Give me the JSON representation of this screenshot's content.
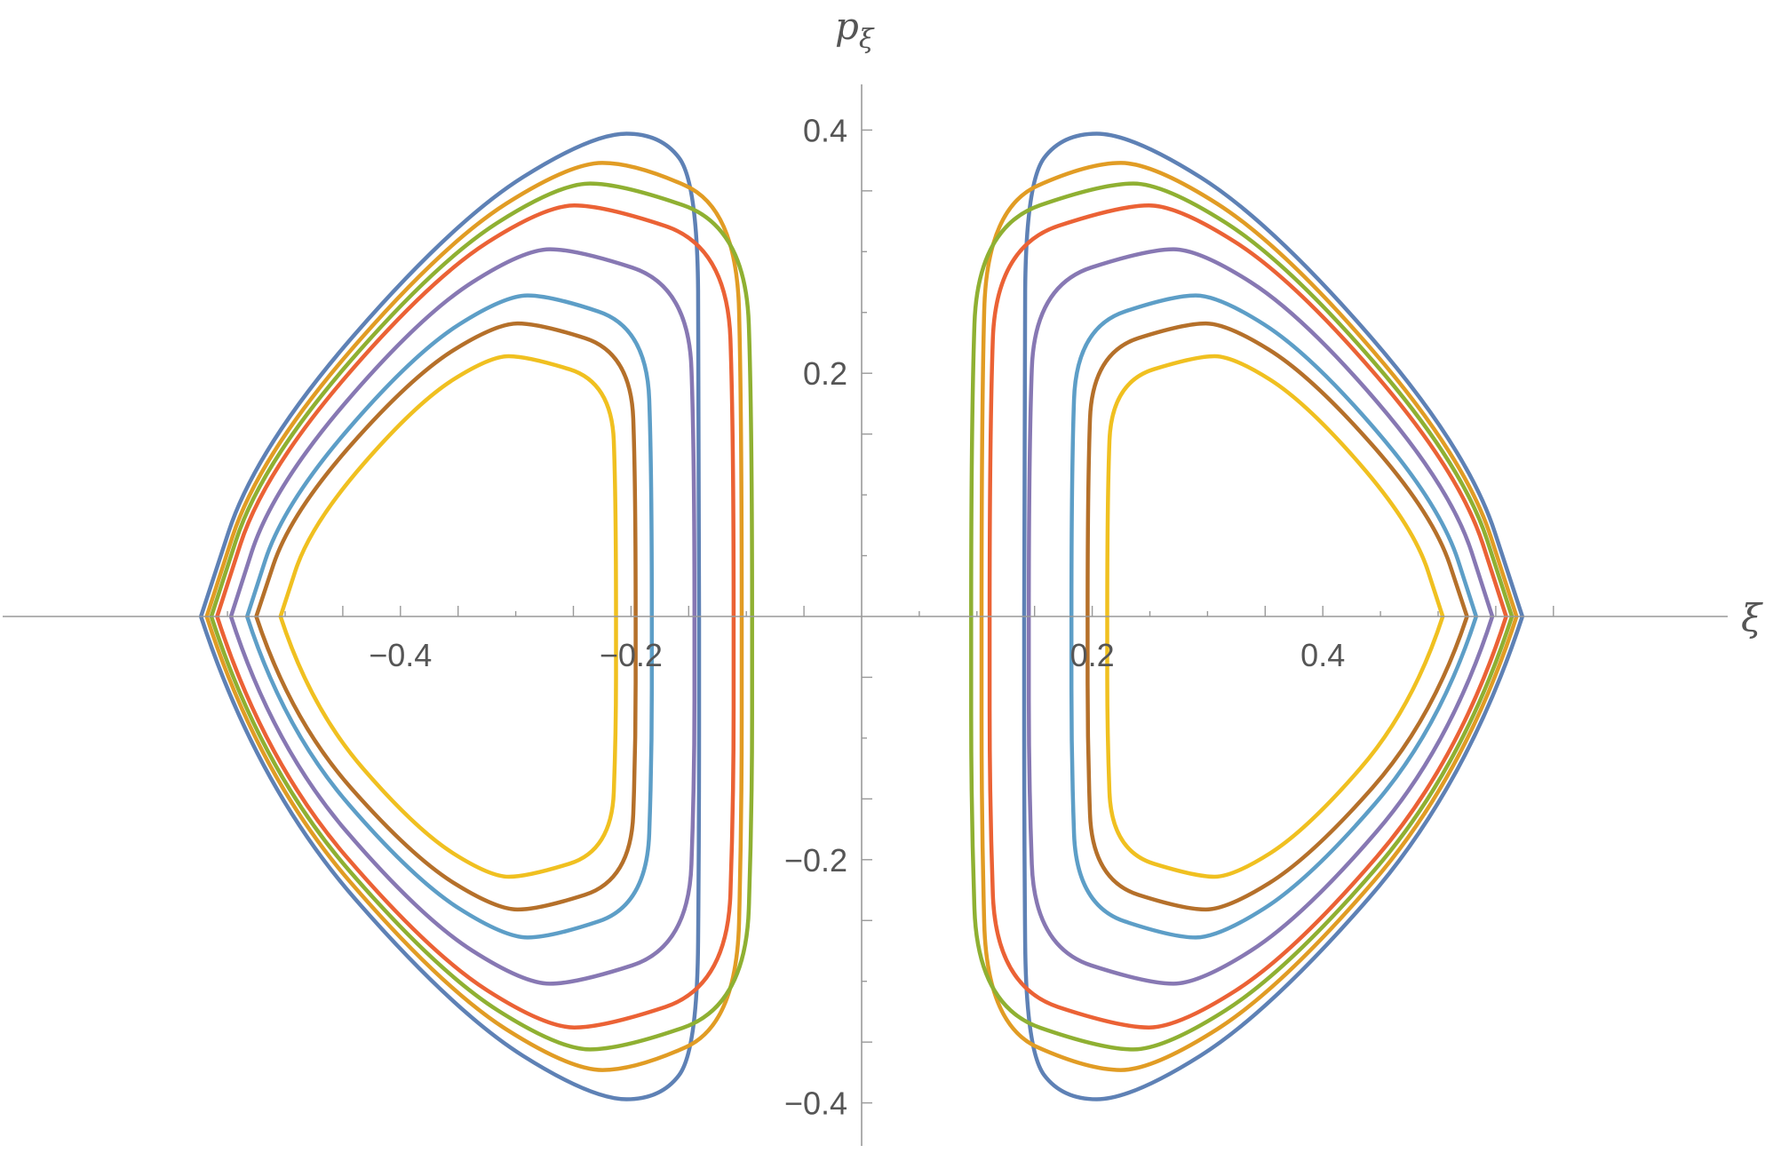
{
  "chart_data": {
    "type": "line",
    "title": "",
    "xlabel": "ξ",
    "ylabel": "p",
    "ylabel_subscript": "ξ",
    "xlim": [
      -0.595,
      0.635
    ],
    "ylim": [
      -0.435,
      0.435
    ],
    "xticks": [
      -0.4,
      -0.2,
      0.2,
      0.4
    ],
    "xtick_labels": [
      "−0.4",
      "−0.2",
      "0.2",
      "0.4"
    ],
    "yticks": [
      0.4,
      0.2,
      -0.2,
      -0.4
    ],
    "ytick_labels": [
      "0.4",
      "0.2",
      "−0.2",
      "−0.4"
    ],
    "grid": false,
    "legend": "none",
    "curve_shape": "closed level curves, triangular with rounded corners, mirror-symmetric in ξ and p",
    "series": [
      {
        "color": "#5E81B5",
        "inner_xi": 0.141,
        "outer_xi": 0.573,
        "peak_p": 0.397,
        "peak_xi": 0.174
      },
      {
        "color": "#E19C24",
        "inner_xi": 0.104,
        "outer_xi": 0.568,
        "peak_p": 0.373,
        "peak_xi": 0.197
      },
      {
        "color": "#8FB032",
        "inner_xi": 0.095,
        "outer_xi": 0.564,
        "peak_p": 0.356,
        "peak_xi": 0.209
      },
      {
        "color": "#EB6235",
        "inner_xi": 0.111,
        "outer_xi": 0.559,
        "peak_p": 0.338,
        "peak_xi": 0.224
      },
      {
        "color": "#8778B3",
        "inner_xi": 0.145,
        "outer_xi": 0.547,
        "peak_p": 0.302,
        "peak_xi": 0.248
      },
      {
        "color": "#5D9EC7",
        "inner_xi": 0.182,
        "outer_xi": 0.533,
        "peak_p": 0.264,
        "peak_xi": 0.27
      },
      {
        "color": "#B5702A",
        "inner_xi": 0.196,
        "outer_xi": 0.525,
        "peak_p": 0.241,
        "peak_xi": 0.28
      },
      {
        "color": "#F0C020",
        "inner_xi": 0.213,
        "outer_xi": 0.504,
        "peak_p": 0.214,
        "peak_xi": 0.29
      }
    ]
  }
}
